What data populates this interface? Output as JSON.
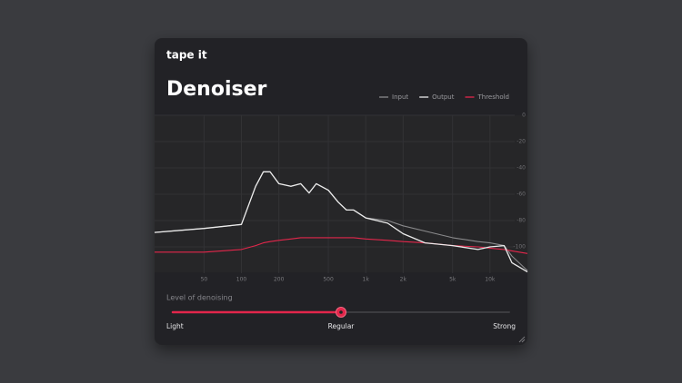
{
  "header": {
    "brand": "tape it",
    "title": "Denoiser"
  },
  "chart_data": {
    "type": "line",
    "xscale": "log",
    "grid": true,
    "legend": "top-right",
    "x": [
      20,
      50,
      100,
      130,
      150,
      170,
      200,
      250,
      300,
      350,
      400,
      500,
      600,
      700,
      800,
      1000,
      1500,
      2000,
      3000,
      5000,
      8000,
      10000,
      13000,
      15000,
      20000
    ],
    "series": [
      {
        "name": "Input",
        "color": "#8a8a8c",
        "values": [
          -89,
          -86,
          -83,
          -54,
          -43,
          -43,
          -52,
          -54,
          -52,
          -59,
          -52,
          -57,
          -66,
          -72,
          -72,
          -78,
          -80,
          -84,
          -88,
          -93,
          -96,
          -97,
          -99,
          -107,
          -118
        ]
      },
      {
        "name": "Output",
        "color": "#ececec",
        "values": [
          -89,
          -86,
          -83,
          -54,
          -43,
          -43,
          -52,
          -54,
          -52,
          -59,
          -52,
          -57,
          -66,
          -72,
          -72,
          -78,
          -82,
          -90,
          -97,
          -99,
          -102,
          -100,
          -99,
          -112,
          -119
        ]
      },
      {
        "name": "Threshold",
        "color": "#e3264b",
        "values": [
          -104,
          -104,
          -102,
          -99,
          -97,
          -96,
          -95,
          -94,
          -93,
          -93,
          -93,
          -93,
          -93,
          -93,
          -93,
          -94,
          -95,
          -96,
          -97,
          -99,
          -100,
          -101,
          -102,
          -103,
          -105
        ]
      }
    ],
    "xlim": [
      20,
      20000
    ],
    "xticks": [
      50,
      100,
      200,
      500,
      {
        "value": 1000,
        "label": "1k"
      },
      {
        "value": 2000,
        "label": "2k"
      },
      {
        "value": 5000,
        "label": "5k"
      },
      {
        "value": 10000,
        "label": "10k"
      }
    ],
    "ylim": [
      -120,
      0
    ],
    "yticks": [
      0,
      -20,
      -40,
      -60,
      -80,
      -100
    ]
  },
  "slider": {
    "label": "Level of denoising",
    "options": [
      "Light",
      "Regular",
      "Strong"
    ],
    "value": 50,
    "range": [
      0,
      100
    ]
  }
}
